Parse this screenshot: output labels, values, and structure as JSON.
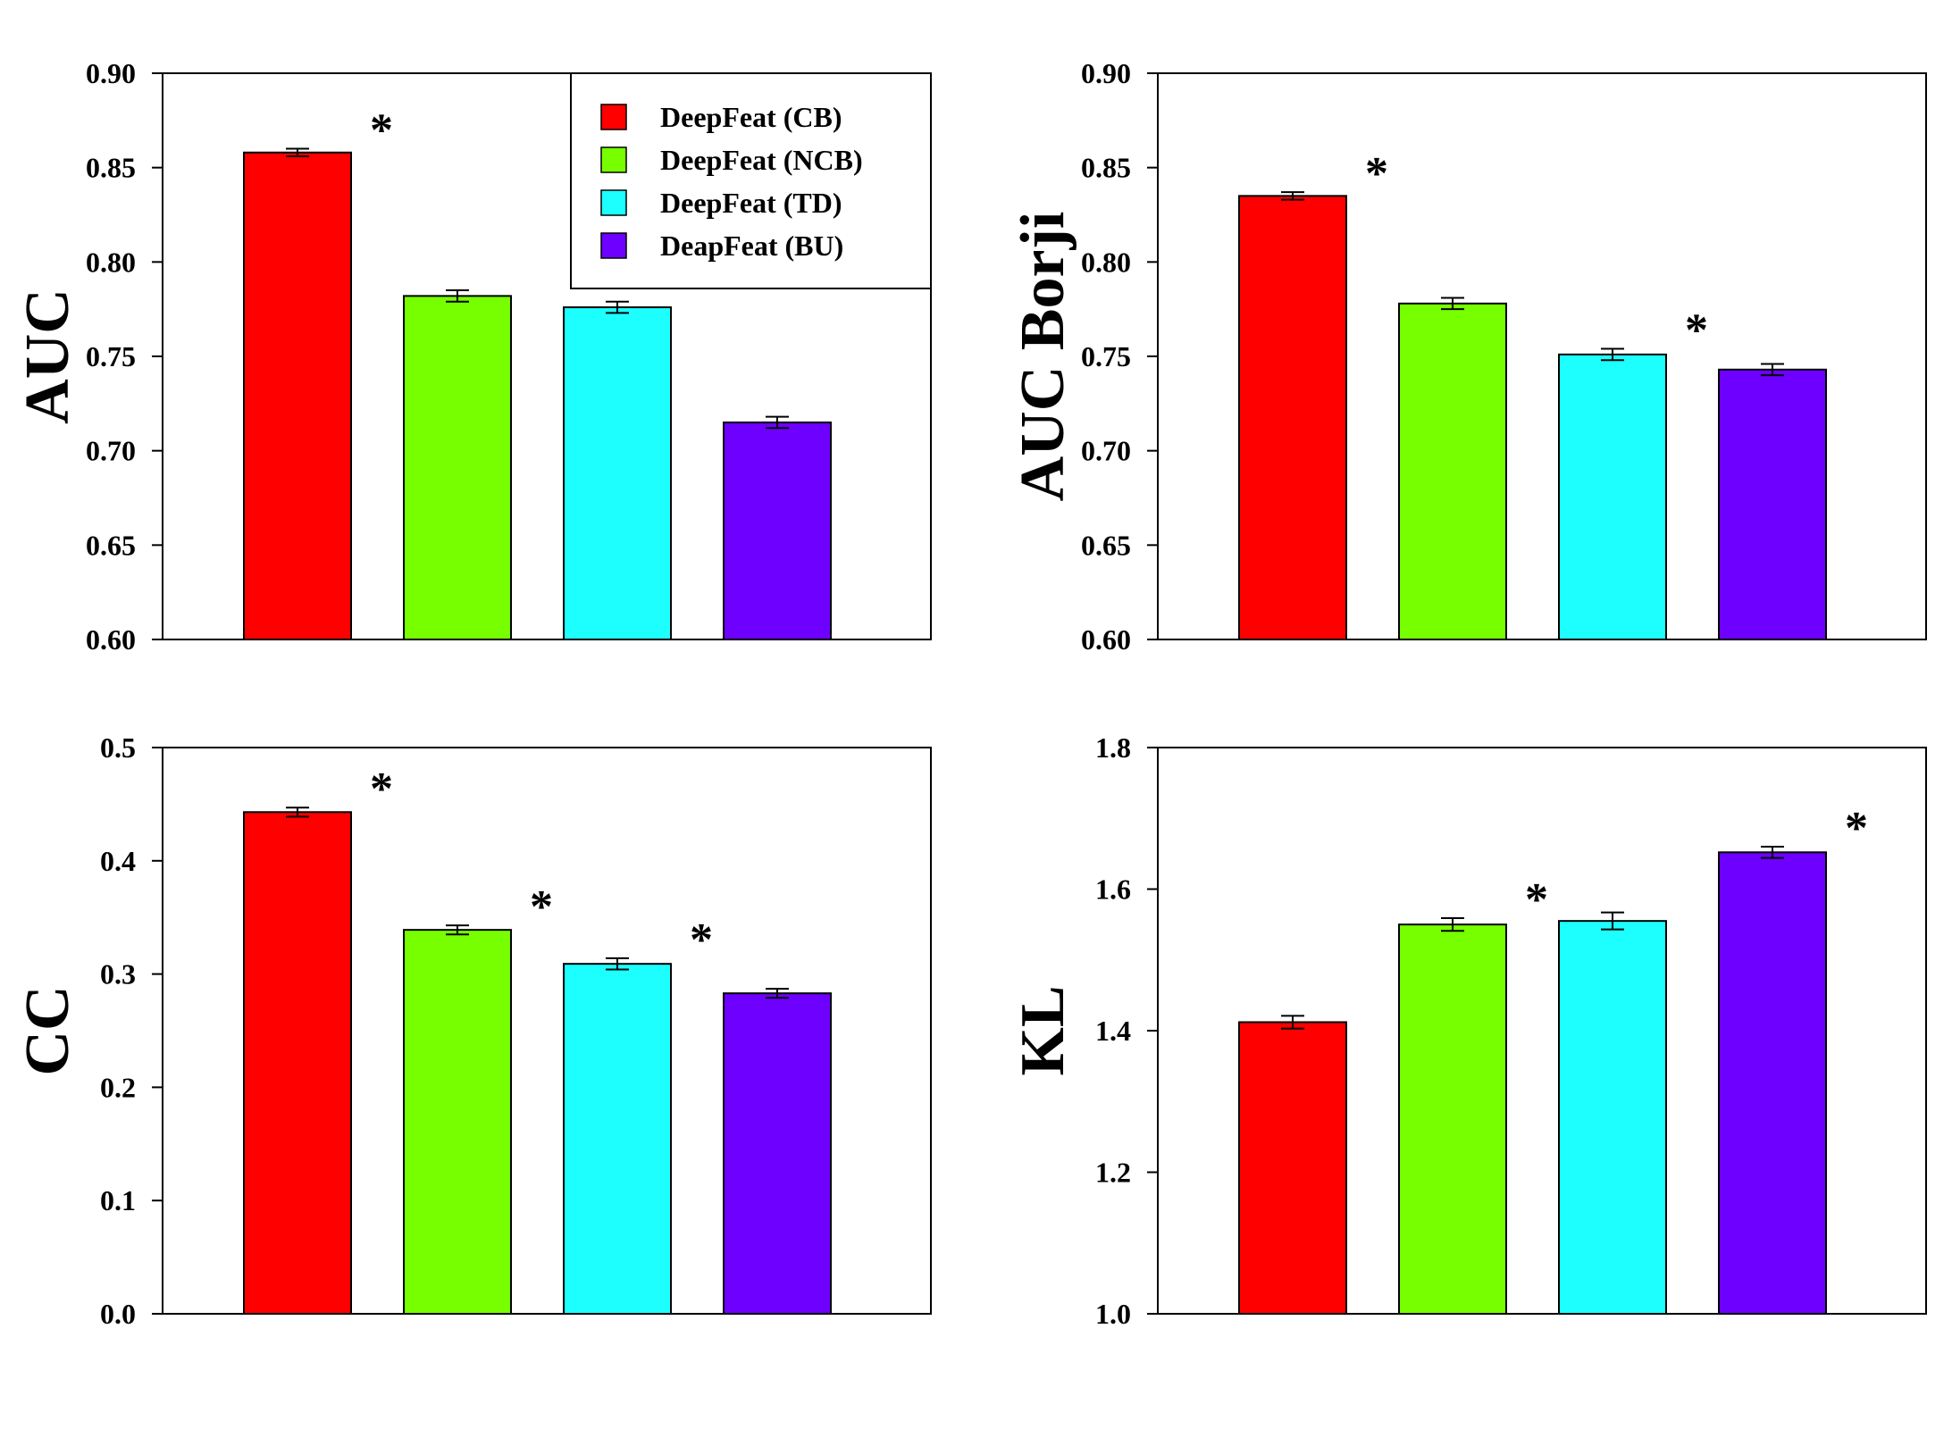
{
  "legend": [
    {
      "label": "DeepFeat (CB)",
      "color": "#ff0000"
    },
    {
      "label": "DeepFeat (NCB)",
      "color": "#77ff00"
    },
    {
      "label": "DeepFeat (TD)",
      "color": "#1dffff"
    },
    {
      "label": "DeapFeat (BU)",
      "color": "#6e00ff"
    }
  ],
  "chart_data": [
    {
      "type": "bar",
      "ylabel": "AUC",
      "ylim": [
        0.6,
        0.9
      ],
      "yticks": [
        "0.60",
        "0.65",
        "0.70",
        "0.75",
        "0.80",
        "0.85",
        "0.90"
      ],
      "categories": [
        "DeepFeat (CB)",
        "DeepFeat (NCB)",
        "DeepFeat (TD)",
        "DeapFeat (BU)"
      ],
      "values": [
        0.858,
        0.782,
        0.776,
        0.715
      ],
      "errors": [
        0.002,
        0.003,
        0.003,
        0.003
      ],
      "significance": [
        "*",
        "",
        "*",
        ""
      ],
      "colors": [
        "#ff0000",
        "#77ff00",
        "#1dffff",
        "#6e00ff"
      ],
      "legend": "top-right"
    },
    {
      "type": "bar",
      "ylabel": "AUC Borji",
      "ylim": [
        0.6,
        0.9
      ],
      "yticks": [
        "0.60",
        "0.65",
        "0.70",
        "0.75",
        "0.80",
        "0.85",
        "0.90"
      ],
      "categories": [
        "DeepFeat (CB)",
        "DeepFeat (NCB)",
        "DeepFeat (TD)",
        "DeapFeat (BU)"
      ],
      "values": [
        0.835,
        0.778,
        0.751,
        0.743
      ],
      "errors": [
        0.002,
        0.003,
        0.003,
        0.003
      ],
      "significance": [
        "*",
        "",
        "*",
        ""
      ],
      "colors": [
        "#ff0000",
        "#77ff00",
        "#1dffff",
        "#6e00ff"
      ]
    },
    {
      "type": "bar",
      "ylabel": "CC",
      "ylim": [
        0.0,
        0.5
      ],
      "yticks": [
        "0.0",
        "0.1",
        "0.2",
        "0.3",
        "0.4",
        "0.5"
      ],
      "categories": [
        "DeepFeat (CB)",
        "DeepFeat (NCB)",
        "DeepFeat (TD)",
        "DeapFeat (BU)"
      ],
      "values": [
        0.443,
        0.339,
        0.309,
        0.283
      ],
      "errors": [
        0.004,
        0.004,
        0.005,
        0.004
      ],
      "significance": [
        "*",
        "*",
        "*",
        ""
      ],
      "colors": [
        "#ff0000",
        "#77ff00",
        "#1dffff",
        "#6e00ff"
      ]
    },
    {
      "type": "bar",
      "ylabel": "KL",
      "ylim": [
        1.0,
        1.8
      ],
      "yticks": [
        "1.0",
        "1.2",
        "1.4",
        "1.6",
        "1.8"
      ],
      "categories": [
        "DeepFeat (CB)",
        "DeepFeat (NCB)",
        "DeepFeat (TD)",
        "DeapFeat (BU)"
      ],
      "values": [
        1.412,
        1.55,
        1.555,
        1.652
      ],
      "errors": [
        0.009,
        0.009,
        0.012,
        0.008
      ],
      "significance": [
        "",
        "*",
        "",
        "*"
      ],
      "colors": [
        "#ff0000",
        "#77ff00",
        "#1dffff",
        "#6e00ff"
      ]
    }
  ]
}
